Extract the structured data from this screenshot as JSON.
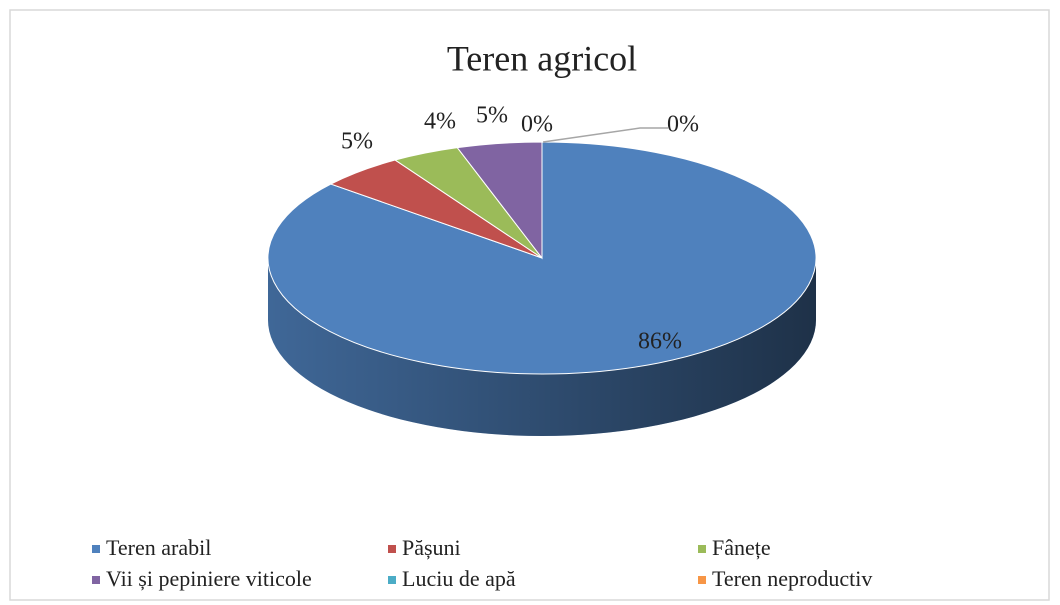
{
  "chart_data": {
    "type": "pie",
    "title": "Teren agricol",
    "categories": [
      "Teren arabil",
      "Pășuni",
      "Fânețe",
      "Vii și pepiniere viticole",
      "Luciu de apă",
      "Teren neproductiv"
    ],
    "values": [
      86,
      5,
      4,
      5,
      0,
      0
    ],
    "value_labels": [
      "86%",
      "5%",
      "4%",
      "5%",
      "0%",
      "0%"
    ],
    "colors": [
      "#4f81bd",
      "#c0504d",
      "#9bbb59",
      "#8064a2",
      "#4bacc6",
      "#f79646"
    ],
    "legend": "bottom"
  }
}
